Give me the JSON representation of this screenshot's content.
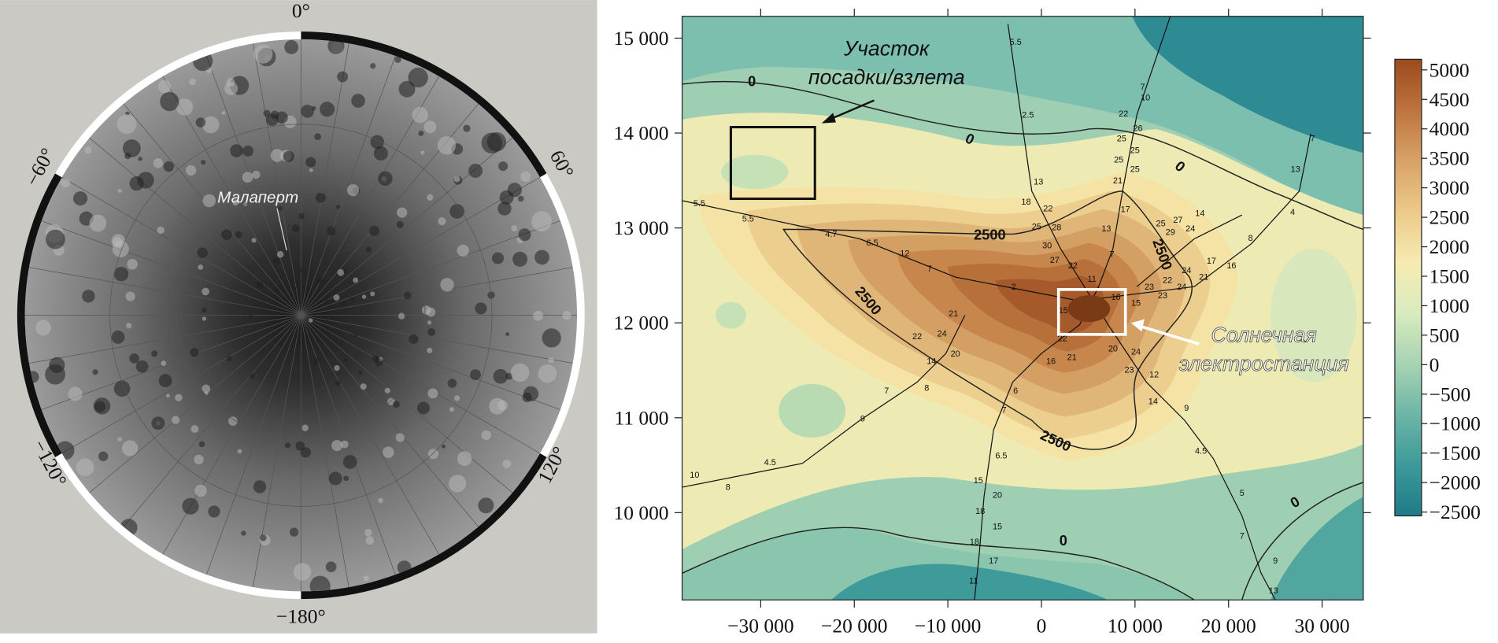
{
  "left_panel": {
    "labels": [
      "0°",
      "−60°",
      "60°",
      "−120°",
      "120°",
      "−180°"
    ],
    "place": "Малаперт"
  },
  "chart_data": {
    "type": "contour",
    "xlim": [
      -38400,
      34400
    ],
    "ylim": [
      9080,
      15230
    ],
    "xticks": [
      {
        "value": -30000,
        "label": "−30 000"
      },
      {
        "value": -20000,
        "label": "−20 000"
      },
      {
        "value": -10000,
        "label": "−10 000"
      },
      0,
      {
        "value": 10000,
        "label": "10 000"
      },
      {
        "value": 20000,
        "label": "20 000"
      },
      {
        "value": 30000,
        "label": "30 000"
      }
    ],
    "yticks": [
      {
        "value": 10000,
        "label": "10 000"
      },
      {
        "value": 11000,
        "label": "11 000"
      },
      {
        "value": 12000,
        "label": "12 000"
      },
      {
        "value": 13000,
        "label": "13 000"
      },
      {
        "value": 14000,
        "label": "14 000"
      },
      {
        "value": 15000,
        "label": "15 000"
      }
    ],
    "colorbar": {
      "lim": [
        -2565,
        5180
      ],
      "ticks": [
        5000,
        4500,
        4000,
        3500,
        3000,
        2500,
        2000,
        1500,
        1000,
        500,
        0,
        {
          "value": -500,
          "label": "−500"
        },
        {
          "value": -1000,
          "label": "−1000"
        },
        {
          "value": -1500,
          "label": "−1500"
        },
        {
          "value": -2000,
          "label": "−2000"
        },
        {
          "value": -2500,
          "label": "−2500"
        }
      ],
      "colors": [
        "#9c4a1e",
        "#bd743e",
        "#d8a266",
        "#ecc98a",
        "#f6ebb2",
        "#d9ebbf",
        "#a7d3b3",
        "#6db6a6",
        "#3c9a9a",
        "#1e7b88"
      ]
    },
    "annotations": [
      "Участок",
      "посадки/взлета",
      "Солнечная",
      "электростанция"
    ],
    "contour_labels": [
      "0",
      "0",
      "0",
      "2500",
      "2500",
      "2500",
      "2500",
      "0",
      "0"
    ],
    "profile_labels": [
      "5.5",
      "2.5",
      "13",
      "18",
      "22",
      "25",
      "28",
      "30",
      "27",
      "22",
      "7",
      "10",
      "22",
      "26",
      "25",
      "25",
      "25",
      "25",
      "21",
      "17",
      "13",
      "7",
      "11",
      "16",
      "15",
      "23",
      "23",
      "22",
      "24",
      "24",
      "21",
      "17",
      "16",
      "8",
      "4",
      "13",
      "7",
      "25",
      "29",
      "27",
      "24",
      "14",
      "5.5",
      "5.5",
      "4.7",
      "6.5",
      "12",
      "7",
      "2",
      "15",
      "22",
      "21",
      "16",
      "20",
      "24",
      "23",
      "12",
      "14",
      "9",
      "4.5",
      "5",
      "7",
      "9",
      "13",
      "21",
      "22",
      "24",
      "20",
      "14",
      "8",
      "7",
      "9",
      "6",
      "7",
      "6.5",
      "15",
      "20",
      "18",
      "15",
      "18",
      "17",
      "11",
      "10",
      "8",
      "4.5"
    ]
  }
}
